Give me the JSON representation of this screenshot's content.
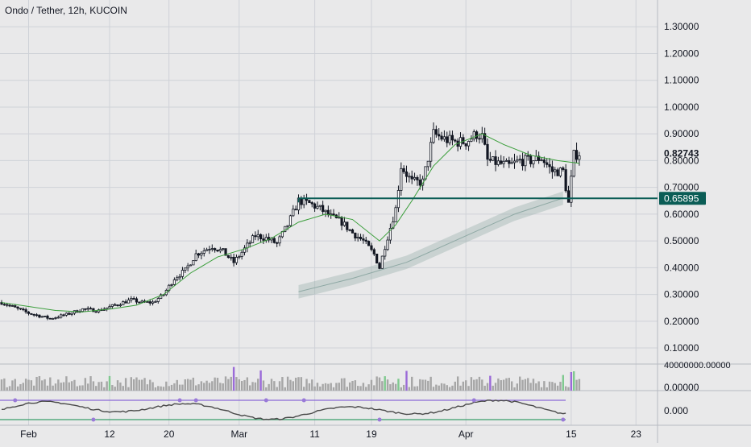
{
  "chart_data": {
    "type": "candlestick",
    "title": "Ondo / Tether, 12h, KUCOIN",
    "x_tick_labels": [
      "Feb",
      "12",
      "20",
      "Mar",
      "11",
      "19",
      "Apr",
      "15",
      "23"
    ],
    "y_axis": {
      "ylim": [
        0.04,
        1.4
      ],
      "tick_values": [
        0.1,
        0.2,
        0.3,
        0.4,
        0.5,
        0.6,
        0.7,
        0.8,
        0.9,
        1.0,
        1.1,
        1.2,
        1.3
      ],
      "tick_labels": [
        "0.10000",
        "0.20000",
        "0.30000",
        "0.40000",
        "0.50000",
        "0.60000",
        "0.70000",
        "0.80000",
        "0.90000",
        "1.00000",
        "1.10000",
        "1.20000",
        "1.30000"
      ]
    },
    "price_labels": {
      "last": "0.82743",
      "level": "0.65895"
    },
    "level_value": 0.65895,
    "last_value": 0.82743,
    "volume_pane": {
      "axis_label": "40000000.00000"
    },
    "oscillator_pane": {
      "axis_labels": [
        "0.00000",
        "0.000"
      ]
    },
    "grid": true,
    "colors": {
      "candle": "#131722",
      "ma_line": "#3a9e3a",
      "band": "#8ea8a4",
      "level_line": "#0b5d56",
      "level_label_bg": "#0b5d56",
      "volume_gray": "#a6a6a6",
      "volume_purple": "#9a6ad8",
      "volume_green": "#7fc98f",
      "osc_line": "#4a4a4a",
      "osc_upper": "#8a6ad8",
      "osc_lower": "#3a9e6a",
      "osc_marker": "#9a7ad8"
    },
    "anchors": [
      [
        0,
        0.27
      ],
      [
        10,
        0.23
      ],
      [
        18,
        0.21
      ],
      [
        24,
        0.225
      ],
      [
        30,
        0.245
      ],
      [
        36,
        0.24
      ],
      [
        42,
        0.26
      ],
      [
        48,
        0.28
      ],
      [
        52,
        0.27
      ],
      [
        56,
        0.27
      ],
      [
        60,
        0.3
      ],
      [
        64,
        0.36
      ],
      [
        68,
        0.39
      ],
      [
        72,
        0.45
      ],
      [
        78,
        0.48
      ],
      [
        82,
        0.46
      ],
      [
        86,
        0.42
      ],
      [
        90,
        0.47
      ],
      [
        94,
        0.52
      ],
      [
        98,
        0.51
      ],
      [
        102,
        0.49
      ],
      [
        106,
        0.56
      ],
      [
        110,
        0.65
      ],
      [
        114,
        0.64
      ],
      [
        118,
        0.62
      ],
      [
        122,
        0.59
      ],
      [
        126,
        0.57
      ],
      [
        130,
        0.53
      ],
      [
        134,
        0.5
      ],
      [
        138,
        0.45
      ],
      [
        140,
        0.4
      ],
      [
        142,
        0.48
      ],
      [
        146,
        0.62
      ],
      [
        148,
        0.78
      ],
      [
        152,
        0.72
      ],
      [
        156,
        0.72
      ],
      [
        160,
        0.9
      ],
      [
        164,
        0.88
      ],
      [
        168,
        0.87
      ],
      [
        172,
        0.87
      ],
      [
        176,
        0.9
      ],
      [
        178,
        0.89
      ],
      [
        180,
        0.8
      ],
      [
        184,
        0.79
      ],
      [
        188,
        0.78
      ],
      [
        192,
        0.8
      ],
      [
        196,
        0.8
      ],
      [
        200,
        0.81
      ],
      [
        204,
        0.76
      ],
      [
        208,
        0.76
      ],
      [
        210,
        0.64
      ],
      [
        212,
        0.82
      ],
      [
        214,
        0.827
      ]
    ],
    "ma_points": [
      [
        0,
        0.27
      ],
      [
        10,
        0.255
      ],
      [
        20,
        0.24
      ],
      [
        30,
        0.235
      ],
      [
        40,
        0.245
      ],
      [
        50,
        0.26
      ],
      [
        60,
        0.3
      ],
      [
        70,
        0.38
      ],
      [
        80,
        0.44
      ],
      [
        90,
        0.47
      ],
      [
        100,
        0.51
      ],
      [
        110,
        0.57
      ],
      [
        120,
        0.6
      ],
      [
        130,
        0.58
      ],
      [
        140,
        0.5
      ],
      [
        146,
        0.56
      ],
      [
        152,
        0.65
      ],
      [
        160,
        0.78
      ],
      [
        168,
        0.86
      ],
      [
        178,
        0.9
      ],
      [
        186,
        0.86
      ],
      [
        196,
        0.82
      ],
      [
        206,
        0.8
      ],
      [
        214,
        0.79
      ]
    ],
    "band_center": [
      [
        110,
        0.31
      ],
      [
        130,
        0.36
      ],
      [
        150,
        0.42
      ],
      [
        170,
        0.51
      ],
      [
        190,
        0.6
      ],
      [
        208,
        0.66
      ]
    ],
    "band_half_width": 0.025,
    "level_start_index": 110,
    "volume_highlights": {
      "purple": [
        86,
        96,
        150,
        181,
        211
      ],
      "green": [
        40,
        142,
        147,
        208,
        212
      ]
    }
  }
}
